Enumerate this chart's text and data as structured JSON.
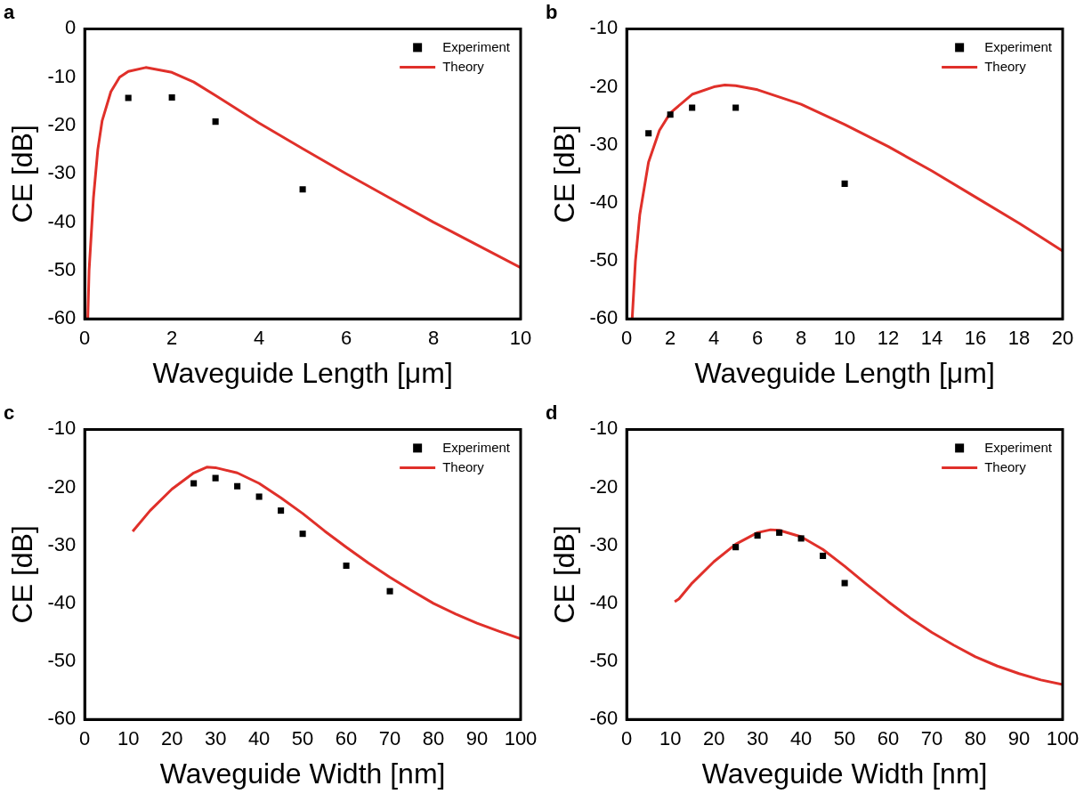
{
  "chart_data": [
    {
      "type": "scatter",
      "title": "a",
      "xlabel": "Waveguide Length [μm]",
      "ylabel": "CE [dB]",
      "xlim": [
        0,
        10
      ],
      "xticks": [
        0,
        2,
        4,
        6,
        8,
        10
      ],
      "ylim": [
        -60,
        0
      ],
      "yticks": [
        -60,
        -50,
        -40,
        -30,
        -20,
        -10,
        0
      ],
      "grid": false,
      "legend": "top right",
      "series": [
        {
          "name": "Experiment",
          "type": "scatter",
          "marker": "square",
          "color": "#000000",
          "x": [
            1,
            2,
            3,
            5
          ],
          "values": [
            -14.3,
            -14.2,
            -19.2,
            -33.2
          ]
        },
        {
          "name": "Theory",
          "type": "line",
          "marker": "none",
          "line_style": "solid",
          "color": "#e0302a",
          "x": [
            0.07,
            0.1,
            0.2,
            0.3,
            0.4,
            0.6,
            0.8,
            1.0,
            1.4,
            2,
            2.5,
            3,
            4,
            5,
            6,
            7,
            8,
            9,
            10
          ],
          "values": [
            -60,
            -50,
            -35,
            -25,
            -19,
            -13,
            -10,
            -8.8,
            -8,
            -9,
            -11,
            -13.8,
            -19.5,
            -24.8,
            -30,
            -35,
            -40,
            -44.7,
            -49.4
          ]
        }
      ]
    },
    {
      "type": "scatter",
      "title": "b",
      "xlabel": "Waveguide Length [μm]",
      "ylabel": "CE [dB]",
      "xlim": [
        0,
        20
      ],
      "xticks": [
        0,
        2,
        4,
        6,
        8,
        10,
        12,
        14,
        16,
        18,
        20
      ],
      "ylim": [
        -60,
        -10
      ],
      "yticks": [
        -60,
        -50,
        -40,
        -30,
        -20,
        -10
      ],
      "grid": false,
      "legend": "top right",
      "series": [
        {
          "name": "Experiment",
          "type": "scatter",
          "marker": "square",
          "color": "#000000",
          "x": [
            1,
            2,
            3,
            5,
            10
          ],
          "values": [
            -28,
            -24.8,
            -23.6,
            -23.6,
            -36.7
          ]
        },
        {
          "name": "Theory",
          "type": "line",
          "marker": "none",
          "line_style": "solid",
          "color": "#e0302a",
          "x": [
            0.25,
            0.4,
            0.6,
            1,
            1.5,
            2,
            3,
            4,
            4.5,
            5,
            6,
            8,
            10,
            12,
            14,
            16,
            18,
            20
          ],
          "values": [
            -60,
            -50,
            -42,
            -33,
            -27.5,
            -24.5,
            -21.3,
            -20,
            -19.7,
            -19.8,
            -20.5,
            -23,
            -26.5,
            -30.3,
            -34.5,
            -39,
            -43.5,
            -48.3
          ]
        }
      ]
    },
    {
      "type": "scatter",
      "title": "c",
      "xlabel": "Waveguide Width [nm]",
      "ylabel": "CE [dB]",
      "xlim": [
        0,
        100
      ],
      "xticks": [
        0,
        10,
        20,
        30,
        40,
        50,
        60,
        70,
        80,
        90,
        100
      ],
      "ylim": [
        -60,
        -10
      ],
      "yticks": [
        -60,
        -50,
        -40,
        -30,
        -20,
        -10
      ],
      "grid": false,
      "legend": "top right",
      "series": [
        {
          "name": "Experiment",
          "type": "scatter",
          "marker": "square",
          "color": "#000000",
          "x": [
            25,
            30,
            35,
            40,
            45,
            50,
            60,
            70
          ],
          "values": [
            -19.3,
            -18.4,
            -19.8,
            -21.6,
            -24.0,
            -28.0,
            -33.5,
            -37.9
          ]
        },
        {
          "name": "Theory",
          "type": "line",
          "marker": "none",
          "line_style": "solid",
          "color": "#e0302a",
          "x": [
            11,
            15,
            20,
            25,
            28,
            30,
            35,
            40,
            45,
            50,
            55,
            60,
            65,
            70,
            75,
            80,
            85,
            90,
            95,
            100
          ],
          "values": [
            -27.6,
            -24,
            -20.3,
            -17.5,
            -16.5,
            -16.6,
            -17.5,
            -19.3,
            -21.8,
            -24.5,
            -27.5,
            -30.3,
            -33,
            -35.5,
            -37.8,
            -40,
            -41.8,
            -43.4,
            -44.8,
            -46.1
          ]
        }
      ]
    },
    {
      "type": "scatter",
      "title": "d",
      "xlabel": "Waveguide Width [nm]",
      "ylabel": "CE [dB]",
      "xlim": [
        0,
        100
      ],
      "xticks": [
        0,
        10,
        20,
        30,
        40,
        50,
        60,
        70,
        80,
        90,
        100
      ],
      "ylim": [
        -60,
        -10
      ],
      "yticks": [
        -60,
        -50,
        -40,
        -30,
        -20,
        -10
      ],
      "grid": false,
      "legend": "top right",
      "series": [
        {
          "name": "Experiment",
          "type": "scatter",
          "marker": "square",
          "color": "#000000",
          "x": [
            25,
            30,
            35,
            40,
            45,
            50
          ],
          "values": [
            -30.3,
            -28.3,
            -27.8,
            -28.8,
            -31.8,
            -36.5
          ]
        },
        {
          "name": "Theory",
          "type": "line",
          "marker": "none",
          "line_style": "solid",
          "color": "#e0302a",
          "x": [
            11,
            12,
            15,
            20,
            25,
            30,
            33,
            35,
            40,
            45,
            50,
            55,
            60,
            65,
            70,
            75,
            80,
            85,
            90,
            95,
            100
          ],
          "values": [
            -39.7,
            -39.2,
            -36.5,
            -32.8,
            -29.8,
            -27.8,
            -27.3,
            -27.4,
            -28.5,
            -30.7,
            -33.6,
            -36.7,
            -39.7,
            -42.5,
            -45,
            -47.2,
            -49.2,
            -50.8,
            -52.1,
            -53.2,
            -54
          ]
        }
      ]
    }
  ]
}
